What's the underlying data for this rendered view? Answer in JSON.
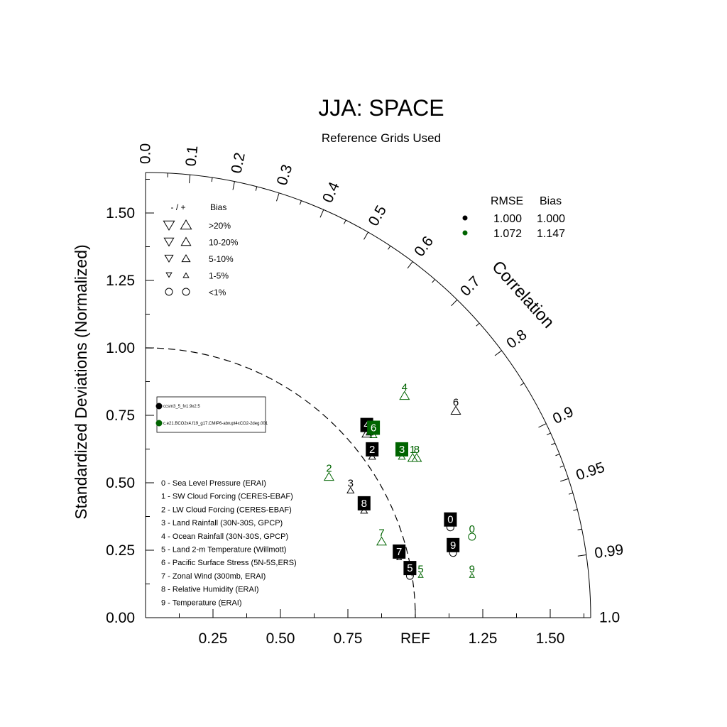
{
  "chart_data": {
    "type": "scatter",
    "plot_kind": "taylor-diagram",
    "title": "JJA: SPACE",
    "subtitle": "Reference Grids Used",
    "ylabel": "Standardized Deviations (Normalized)",
    "corr_axis_label": "Correlation",
    "ref_label": "REF",
    "ylim": [
      0,
      1.65
    ],
    "y_ticks": [
      "0.00",
      "0.25",
      "0.50",
      "0.75",
      "1.00",
      "1.25",
      "1.50"
    ],
    "x_ticks": [
      {
        "value": 0.25,
        "label": "0.25"
      },
      {
        "value": 0.5,
        "label": "0.50"
      },
      {
        "value": 0.75,
        "label": "0.75"
      },
      {
        "value": 1.0,
        "label": "REF"
      },
      {
        "value": 1.25,
        "label": "1.25"
      },
      {
        "value": 1.5,
        "label": "1.50"
      }
    ],
    "corr_ticks": [
      "0.0",
      "0.1",
      "0.2",
      "0.3",
      "0.4",
      "0.5",
      "0.6",
      "0.7",
      "0.8",
      "0.9",
      "0.95",
      "0.99",
      "1.0"
    ],
    "colors": {
      "case1": "#000000",
      "case2": "#006400"
    },
    "bias_legend": {
      "header_sign": "- / +",
      "header_bias": "Bias",
      "rows": [
        ">20%",
        "10-20%",
        "5-10%",
        "1-5%",
        "<1%"
      ]
    },
    "stats_table": {
      "header_rmse": "RMSE",
      "header_bias": "Bias",
      "rows": [
        {
          "rmse": "1.000",
          "bias": "1.000",
          "color": "#000000"
        },
        {
          "rmse": "1.072",
          "bias": "1.147",
          "color": "#006400"
        }
      ]
    },
    "cases": [
      "ccsm3_5_fv1.9x2.5",
      "c.e21.BCO2x4.f19_g17.CMIP6-abrupt4xCO2-2deg.001"
    ],
    "variables": [
      "0 - Sea Level Pressure (ERAI)",
      "1 - SW Cloud Forcing (CERES-EBAF)",
      "2 - LW Cloud Forcing (CERES-EBAF)",
      "3 - Land Rainfall (30N-30S, GPCP)",
      "4 - Ocean Rainfall (30N-30S, GPCP)",
      "5 - Land 2-m Temperature (Willmott)",
      "6 - Pacific Surface Stress (5N-5S,ERS)",
      "7 - Zonal Wind (300mb, ERAI)",
      "8 - Relative Humidity (ERAI)",
      "9 - Temperature (ERAI)"
    ],
    "series": [
      {
        "name": "ccsm3_5_fv1.9x2.5",
        "color": "#000000",
        "points": [
          {
            "id": "0",
            "x": 1.13,
            "y": 0.335,
            "marker": "circle",
            "size": "small",
            "boxed": true
          },
          {
            "id": "1",
            "x": 0.83,
            "y": 0.685,
            "marker": "triangle-up",
            "size": "small",
            "boxed": false
          },
          {
            "id": "2",
            "x": 0.84,
            "y": 0.595,
            "marker": "triangle-up",
            "size": "small",
            "boxed": true
          },
          {
            "id": "3",
            "x": 0.76,
            "y": 0.47,
            "marker": "triangle-up",
            "size": "small",
            "boxed": false
          },
          {
            "id": "4",
            "x": 0.82,
            "y": 0.68,
            "marker": "triangle-up",
            "size": "medium",
            "boxed": true
          },
          {
            "id": "5",
            "x": 0.98,
            "y": 0.155,
            "marker": "circle",
            "size": "small",
            "boxed": true
          },
          {
            "id": "6",
            "x": 1.15,
            "y": 0.765,
            "marker": "triangle-up",
            "size": "medium",
            "boxed": false
          },
          {
            "id": "7",
            "x": 0.94,
            "y": 0.22,
            "marker": "triangle-up",
            "size": "tiny",
            "boxed": true
          },
          {
            "id": "8",
            "x": 0.81,
            "y": 0.395,
            "marker": "triangle-up",
            "size": "small",
            "boxed": true
          },
          {
            "id": "9",
            "x": 1.14,
            "y": 0.24,
            "marker": "circle",
            "size": "small",
            "boxed": true
          }
        ]
      },
      {
        "name": "c.e21.BCO2x4.f19_g17.CMIP6-abrupt4xCO2-2deg.001",
        "color": "#006400",
        "points": [
          {
            "id": "0",
            "x": 1.21,
            "y": 0.3,
            "marker": "circle",
            "size": "small",
            "boxed": false
          },
          {
            "id": "1",
            "x": 0.99,
            "y": 0.59,
            "marker": "triangle-up",
            "size": "medium",
            "boxed": false
          },
          {
            "id": "2",
            "x": 0.68,
            "y": 0.52,
            "marker": "triangle-up",
            "size": "medium",
            "boxed": false
          },
          {
            "id": "3",
            "x": 0.95,
            "y": 0.595,
            "marker": "triangle-up",
            "size": "small",
            "boxed": true
          },
          {
            "id": "4",
            "x": 0.96,
            "y": 0.82,
            "marker": "triangle-up",
            "size": "medium",
            "boxed": false
          },
          {
            "id": "5",
            "x": 1.02,
            "y": 0.155,
            "marker": "triangle-up",
            "size": "tiny",
            "boxed": false
          },
          {
            "id": "6",
            "x": 0.845,
            "y": 0.675,
            "marker": "triangle-up",
            "size": "small",
            "boxed": true
          },
          {
            "id": "7",
            "x": 0.875,
            "y": 0.28,
            "marker": "triangle-up",
            "size": "medium",
            "boxed": false
          },
          {
            "id": "8",
            "x": 1.005,
            "y": 0.59,
            "marker": "triangle-up",
            "size": "medium",
            "boxed": false
          },
          {
            "id": "9",
            "x": 1.21,
            "y": 0.155,
            "marker": "triangle-up",
            "size": "tiny",
            "boxed": false
          }
        ]
      }
    ]
  }
}
